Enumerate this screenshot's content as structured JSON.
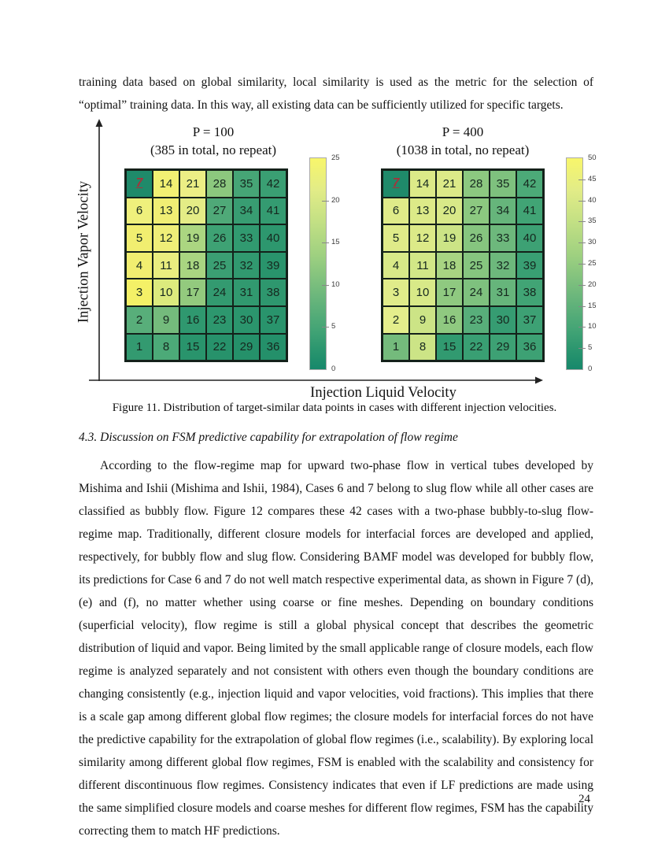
{
  "page": {
    "top_paragraph": "training data based on global similarity, local similarity is used as the metric for the selection of “optimal” training data. In this way, all existing data can be sufficiently utilized for specific targets.",
    "section_heading": "4.3. Discussion on FSM predictive capability for extrapolation of flow regime",
    "body_paragraph": "According to the flow-regime map for upward two-phase flow in vertical tubes developed by Mishima and Ishii (Mishima and Ishii, 1984), Cases 6 and 7 belong to slug flow while all other cases are classified as bubbly flow. Figure 12 compares these 42 cases with a two-phase bubbly-to-slug flow-regime map. Traditionally, different closure models for interfacial forces are developed and applied, respectively, for bubbly flow and slug flow. Considering BAMF model was developed for bubbly flow, its predictions for Case 6 and 7 do not well match respective experimental data, as shown in Figure 7 (d), (e) and (f), no matter whether using coarse or fine meshes. Depending on boundary conditions (superficial velocity), flow regime is still a global physical concept that describes the geometric distribution of liquid and vapor. Being limited by the small applicable range of closure models, each flow regime is analyzed separately and not consistent with others even though the boundary conditions are changing consistently (e.g., injection liquid and vapor velocities, void fractions). This implies that there is a scale gap among different global flow regimes; the closure models for interfacial forces do not have the predictive capability for the extrapolation of global flow regimes (i.e., scalability). By exploring local similarity among different global flow regimes, FSM is enabled with the scalability and consistency for different discontinuous flow regimes. Consistency indicates that even if LF predictions are made using the same simplified closure models and coarse meshes for different flow regimes, FSM has the capability correcting them to match HF predictions.",
    "page_number": "24"
  },
  "figure": {
    "caption": "Figure 11. Distribution of target-similar data points in cases with different injection velocities.",
    "y_axis_label": "Injection Vapor Velocity",
    "x_axis_label": "Injection Liquid Velocity",
    "target_case": "7",
    "target_color": "#a4333c",
    "panels": [
      {
        "title": "P = 100",
        "subtitle": "(385 in total, no repeat)",
        "colorbar": {
          "min": 0,
          "max": 25,
          "ticks": [
            0,
            5,
            10,
            15,
            20,
            25
          ]
        },
        "labels": [
          [
            "7",
            "14",
            "21",
            "28",
            "35",
            "42"
          ],
          [
            "6",
            "13",
            "20",
            "27",
            "34",
            "41"
          ],
          [
            "5",
            "12",
            "19",
            "26",
            "33",
            "40"
          ],
          [
            "4",
            "11",
            "18",
            "25",
            "32",
            "39"
          ],
          [
            "3",
            "10",
            "17",
            "24",
            "31",
            "38"
          ],
          [
            "2",
            "9",
            "16",
            "23",
            "30",
            "37"
          ],
          [
            "1",
            "8",
            "15",
            "22",
            "29",
            "36"
          ]
        ],
        "colors": [
          [
            "#1f8a6a",
            "#f2f073",
            "#ecee85",
            "#8cc87e",
            "#46a576",
            "#3a9f73"
          ],
          [
            "#eff07c",
            "#f0ee74",
            "#e4ec86",
            "#4fa978",
            "#389d72",
            "#349b71"
          ],
          [
            "#f1ee70",
            "#efee78",
            "#abd681",
            "#3ea274",
            "#319a70",
            "#2d976e"
          ],
          [
            "#f1ee70",
            "#e9ed7f",
            "#a9d581",
            "#3b9f73",
            "#31996f",
            "#29946c"
          ],
          [
            "#f4f167",
            "#dcea7d",
            "#93ca7e",
            "#339a70",
            "#31996f",
            "#2e976e"
          ],
          [
            "#58ae7a",
            "#74bb7c",
            "#2f986f",
            "#2d976e",
            "#2b956d",
            "#29946c"
          ],
          [
            "#339a70",
            "#4caa78",
            "#29946c",
            "#27926b",
            "#25916a",
            "#24906a"
          ]
        ]
      },
      {
        "title": "P = 400",
        "subtitle": "(1038 in total, no repeat)",
        "colorbar": {
          "min": 0,
          "max": 50,
          "ticks": [
            0,
            5,
            10,
            15,
            20,
            25,
            30,
            35,
            40,
            45,
            50
          ]
        },
        "labels": [
          [
            "7",
            "14",
            "21",
            "28",
            "35",
            "42"
          ],
          [
            "6",
            "13",
            "20",
            "27",
            "34",
            "41"
          ],
          [
            "5",
            "12",
            "19",
            "26",
            "33",
            "40"
          ],
          [
            "4",
            "11",
            "18",
            "25",
            "32",
            "39"
          ],
          [
            "3",
            "10",
            "17",
            "24",
            "31",
            "38"
          ],
          [
            "2",
            "9",
            "16",
            "23",
            "30",
            "37"
          ],
          [
            "1",
            "8",
            "15",
            "22",
            "29",
            "36"
          ]
        ],
        "colors": [
          [
            "#1f8a6a",
            "#dcea88",
            "#dcea88",
            "#8cc880",
            "#7ec17e",
            "#4caa78"
          ],
          [
            "#dfeb89",
            "#dcea88",
            "#d8e988",
            "#8cc880",
            "#66b57b",
            "#41a475"
          ],
          [
            "#dfeb89",
            "#dcea88",
            "#cce486",
            "#86c57f",
            "#6db87c",
            "#3da174"
          ],
          [
            "#d8e988",
            "#d2e787",
            "#a8d482",
            "#86c57f",
            "#6db87c",
            "#399f73"
          ],
          [
            "#e0ec8a",
            "#d8e988",
            "#8fc980",
            "#7ec17e",
            "#66b57b",
            "#41a475"
          ],
          [
            "#e4ee8c",
            "#cce486",
            "#8fc980",
            "#58ae7a",
            "#369c72",
            "#3da174"
          ],
          [
            "#74bb7c",
            "#cce486",
            "#319a70",
            "#399f73",
            "#3da174",
            "#3da174"
          ]
        ]
      }
    ]
  },
  "chart_data": [
    {
      "type": "heatmap",
      "title": "P = 100 (385 in total, no repeat)",
      "xlabel": "Injection Liquid Velocity",
      "ylabel": "Injection Vapor Velocity",
      "case_labels": [
        [
          "7",
          "14",
          "21",
          "28",
          "35",
          "42"
        ],
        [
          "6",
          "13",
          "20",
          "27",
          "34",
          "41"
        ],
        [
          "5",
          "12",
          "19",
          "26",
          "33",
          "40"
        ],
        [
          "4",
          "11",
          "18",
          "25",
          "32",
          "39"
        ],
        [
          "3",
          "10",
          "17",
          "24",
          "31",
          "38"
        ],
        [
          "2",
          "9",
          "16",
          "23",
          "30",
          "37"
        ],
        [
          "1",
          "8",
          "15",
          "22",
          "29",
          "36"
        ]
      ],
      "values": [
        [
          0,
          23,
          21,
          12,
          6,
          5
        ],
        [
          22,
          23,
          20,
          7,
          5,
          4
        ],
        [
          23,
          22,
          15,
          5,
          4,
          4
        ],
        [
          23,
          21,
          15,
          5,
          4,
          3
        ],
        [
          24,
          19,
          13,
          4,
          4,
          4
        ],
        [
          8,
          10,
          4,
          4,
          3,
          3
        ],
        [
          4,
          7,
          3,
          3,
          2,
          2
        ]
      ],
      "colorbar_range": [
        0,
        25
      ],
      "colorbar_ticks": [
        0,
        5,
        10,
        15,
        20,
        25
      ],
      "target_case": "7",
      "legend_position": "right"
    },
    {
      "type": "heatmap",
      "title": "P = 400 (1038 in total, no repeat)",
      "xlabel": "Injection Liquid Velocity",
      "ylabel": "Injection Vapor Velocity",
      "case_labels": [
        [
          "7",
          "14",
          "21",
          "28",
          "35",
          "42"
        ],
        [
          "6",
          "13",
          "20",
          "27",
          "34",
          "41"
        ],
        [
          "5",
          "12",
          "19",
          "26",
          "33",
          "40"
        ],
        [
          "4",
          "11",
          "18",
          "25",
          "32",
          "39"
        ],
        [
          "3",
          "10",
          "17",
          "24",
          "31",
          "38"
        ],
        [
          "2",
          "9",
          "16",
          "23",
          "30",
          "37"
        ],
        [
          "1",
          "8",
          "15",
          "22",
          "29",
          "36"
        ]
      ],
      "values": [
        [
          0,
          36,
          36,
          24,
          22,
          12
        ],
        [
          37,
          36,
          35,
          24,
          17,
          9
        ],
        [
          37,
          36,
          33,
          23,
          19,
          8
        ],
        [
          35,
          34,
          28,
          23,
          19,
          7
        ],
        [
          38,
          35,
          25,
          22,
          17,
          9
        ],
        [
          38,
          33,
          25,
          14,
          6,
          8
        ],
        [
          20,
          33,
          5,
          7,
          8,
          8
        ]
      ],
      "colorbar_range": [
        0,
        50
      ],
      "colorbar_ticks": [
        0,
        5,
        10,
        15,
        20,
        25,
        30,
        35,
        40,
        45,
        50
      ],
      "target_case": "7",
      "legend_position": "right"
    }
  ]
}
